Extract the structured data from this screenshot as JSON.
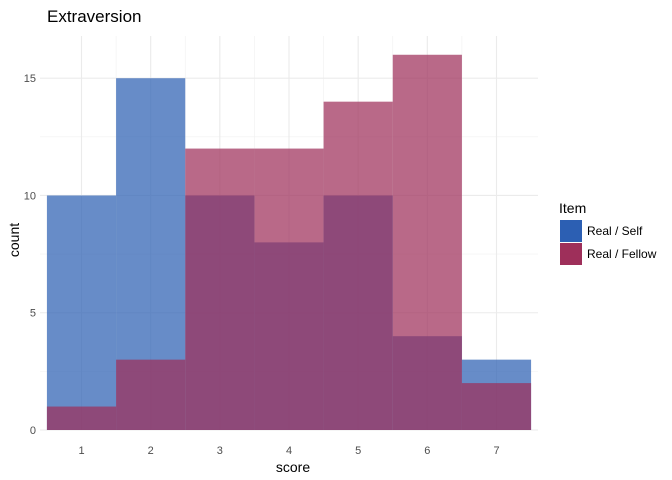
{
  "chart_data": {
    "type": "bar",
    "title": "Extraversion",
    "xlabel": "score",
    "ylabel": "count",
    "categories": [
      1,
      2,
      3,
      4,
      5,
      6,
      7
    ],
    "x_ticks": [
      "1",
      "2",
      "3",
      "4",
      "5",
      "6",
      "7"
    ],
    "y_ticks": [
      "0",
      "5",
      "10",
      "15"
    ],
    "ylim": [
      0,
      16.8
    ],
    "grid": true,
    "legend_position": "right",
    "legend_title": "Item",
    "series": [
      {
        "name": "Real / Self",
        "values": [
          10,
          15,
          10,
          8,
          10,
          4,
          3
        ],
        "color": "#2c5fb3"
      },
      {
        "name": "Real / Fellow",
        "values": [
          1,
          3,
          12,
          12,
          14,
          16,
          2
        ],
        "color": "#9e2f5a"
      }
    ],
    "overlap_color": "#7a3670",
    "bar_opacity": 0.72
  }
}
